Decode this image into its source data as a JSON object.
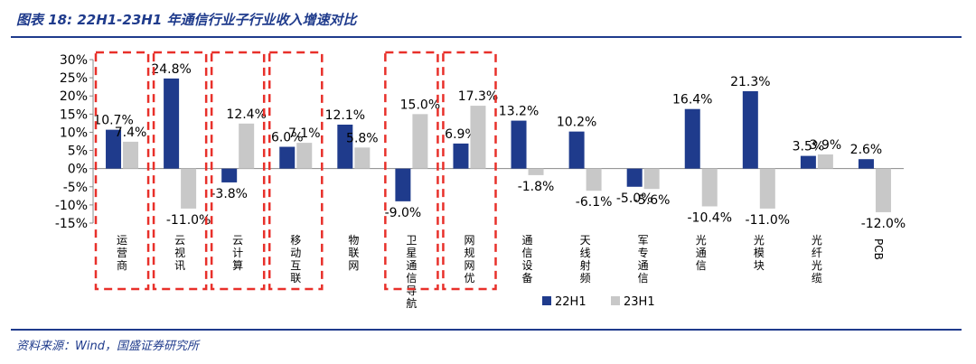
{
  "header": {
    "title": "图表 18:  22H1-23H1 年通信行业子行业收入增速对比"
  },
  "footer": {
    "source": "资料来源：Wind，国盛证券研究所"
  },
  "colors": {
    "series1": "#1f3b8c",
    "series2": "#c8c8c8",
    "highlight": "#e8302a",
    "title": "#1f3b8c"
  },
  "chart_data": {
    "type": "bar",
    "title": "22H1-23H1 年通信行业子行业收入增速对比",
    "categories": [
      "运营商",
      "云视讯",
      "云计算",
      "移动互联",
      "物联网",
      "卫星通信导航",
      "网规网优",
      "通信设备",
      "天线射频",
      "军专通信",
      "光通信",
      "光模块",
      "光纤光缆",
      "PCB"
    ],
    "series": [
      {
        "name": "22H1",
        "values": [
          10.7,
          24.8,
          -3.8,
          6.0,
          12.1,
          -9.0,
          6.9,
          13.2,
          10.2,
          -5.0,
          16.4,
          21.3,
          3.5,
          2.6
        ]
      },
      {
        "name": "23H1",
        "values": [
          7.4,
          -11.0,
          12.4,
          7.1,
          5.8,
          15.0,
          17.3,
          -1.8,
          -6.1,
          -5.6,
          -10.4,
          -11.0,
          3.9,
          -12.0
        ]
      }
    ],
    "data_labels": {
      "22H1": [
        "10.7%",
        "24.8%",
        "-3.8%",
        "6.0%",
        "12.1%",
        "-9.0%",
        "6.9%",
        "13.2%",
        "10.2%",
        "-5.0%",
        "16.4%",
        "21.3%",
        "3.5%",
        "2.6%"
      ],
      "23H1": [
        "7.4%",
        "-11.0%",
        "12.4%",
        "7.1%",
        "5.8%",
        "15.0%",
        "17.3%",
        "-1.8%",
        "-6.1%",
        "-5.6%",
        "-10.4%",
        "-11.0%",
        "3.9%",
        "-12.0%"
      ]
    },
    "ylim": [
      -15,
      30
    ],
    "yticks": [
      -15,
      -10,
      -5,
      0,
      5,
      10,
      15,
      20,
      25,
      30
    ],
    "ytick_labels": [
      "-15%",
      "-10%",
      "-5%",
      "0%",
      "5%",
      "10%",
      "15%",
      "20%",
      "25%",
      "30%"
    ],
    "legend": [
      "22H1",
      "23H1"
    ],
    "legend_position": "bottom-right",
    "highlighted_groups": [
      [
        0
      ],
      [
        1
      ],
      [
        2
      ],
      [
        3
      ],
      [
        5
      ],
      [
        6
      ]
    ],
    "xlabel": "",
    "ylabel": ""
  }
}
